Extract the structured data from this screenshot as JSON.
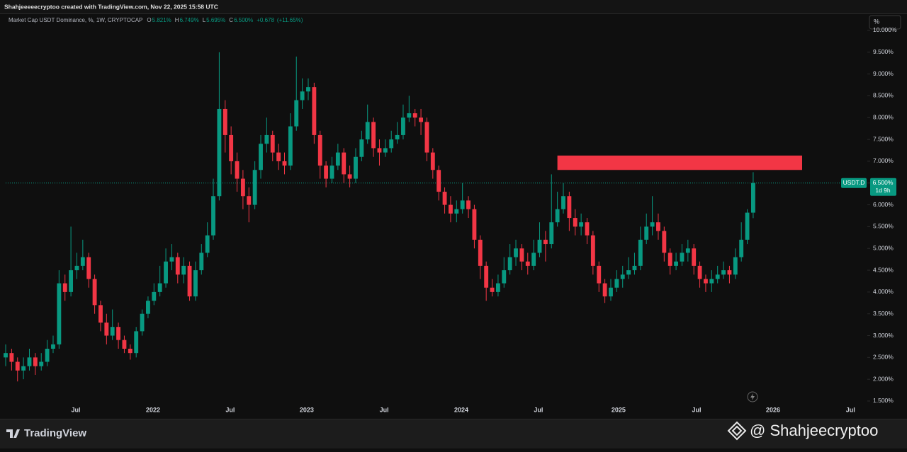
{
  "header": {
    "credit": "Shahjeeeeecryptoo created with TradingView.com, Nov 22, 2025 15:58 UTC"
  },
  "chart_data": {
    "type": "candlestick",
    "title": "Market Cap USDT Dominance, %, 1W, CRYPTOCAP",
    "legend": {
      "ohlc": [
        {
          "key": "O",
          "value": 5.821,
          "label": "5.821%"
        },
        {
          "key": "H",
          "value": 6.749,
          "label": "6.749%"
        },
        {
          "key": "L",
          "value": 5.695,
          "label": "5.695%"
        },
        {
          "key": "C",
          "value": 6.5,
          "label": "6.500%"
        }
      ],
      "change": {
        "value": 0.678,
        "label": "+0.678"
      },
      "change_pct": {
        "value": 11.65,
        "label": "(+11.65%)"
      }
    },
    "unit_button": "%",
    "up_color": "#089981",
    "down_color": "#f23645",
    "x": [
      0,
      2,
      4,
      6,
      8,
      10,
      12,
      14,
      16,
      18,
      20,
      22,
      24,
      26,
      28,
      30,
      32,
      34,
      36,
      38,
      40,
      42,
      44,
      46,
      48,
      50,
      52,
      54,
      56,
      58,
      60,
      62,
      64,
      66,
      68,
      70,
      72,
      74,
      76,
      78,
      80,
      82,
      84,
      86,
      88,
      90,
      92,
      94,
      96,
      98,
      100,
      102,
      104,
      106,
      108,
      110,
      112,
      114,
      116,
      118,
      120,
      122,
      124,
      126,
      128,
      130,
      132,
      134,
      136,
      138,
      140,
      142,
      144,
      146,
      148,
      150,
      152,
      154,
      156,
      158,
      160,
      162,
      164,
      166,
      168,
      170,
      172,
      174,
      176,
      178,
      180,
      182,
      184,
      186,
      188,
      190,
      192,
      194,
      196,
      198,
      200,
      202,
      204,
      206,
      208,
      210,
      212,
      214,
      216,
      218,
      220,
      222,
      224,
      226,
      228,
      230,
      232,
      234,
      236,
      238,
      240,
      242,
      244,
      246,
      248,
      250,
      252
    ],
    "open": [
      2.5,
      2.6,
      2.4,
      2.2,
      2.3,
      2.5,
      2.3,
      2.4,
      2.7,
      2.8,
      4.2,
      4.0,
      4.5,
      4.6,
      4.8,
      4.3,
      3.7,
      3.3,
      3.0,
      3.2,
      2.9,
      2.7,
      2.6,
      3.1,
      3.5,
      3.8,
      4.0,
      4.2,
      4.7,
      4.8,
      4.4,
      4.6,
      3.9,
      4.5,
      4.9,
      5.3,
      6.2,
      8.2,
      7.6,
      7.0,
      6.6,
      6.2,
      6.0,
      6.8,
      7.4,
      7.6,
      7.2,
      7.0,
      6.9,
      7.8,
      8.4,
      8.6,
      8.7,
      7.6,
      6.9,
      6.6,
      6.9,
      7.2,
      6.7,
      6.6,
      7.1,
      7.5,
      7.9,
      7.3,
      7.2,
      7.3,
      7.5,
      7.6,
      8.0,
      8.1,
      8.0,
      7.9,
      7.2,
      6.8,
      6.3,
      6.0,
      5.8,
      5.9,
      6.1,
      5.9,
      5.2,
      4.6,
      4.1,
      4.0,
      4.2,
      4.5,
      4.8,
      5.0,
      4.7,
      4.6,
      4.9,
      5.2,
      5.1,
      5.6,
      5.9,
      6.2,
      5.7,
      5.5,
      5.6,
      5.3,
      4.6,
      4.2,
      3.9,
      4.1,
      4.3,
      4.4,
      4.5,
      4.6,
      5.2,
      5.5,
      5.6,
      5.4,
      4.9,
      4.6,
      4.7,
      4.9,
      5.0,
      4.6,
      4.3,
      4.2,
      4.3,
      4.4,
      4.5,
      4.4,
      4.8,
      5.2,
      5.821
    ],
    "high": [
      2.8,
      2.7,
      2.5,
      2.5,
      2.7,
      2.6,
      2.6,
      2.9,
      3.0,
      4.5,
      4.4,
      5.5,
      4.9,
      5.2,
      4.9,
      4.4,
      3.8,
      3.5,
      3.6,
      3.3,
      3.0,
      2.8,
      3.2,
      3.6,
      3.9,
      4.2,
      4.6,
      5.0,
      5.1,
      4.9,
      4.8,
      4.7,
      4.7,
      5.1,
      5.6,
      6.6,
      9.5,
      8.4,
      7.8,
      7.2,
      6.8,
      6.4,
      7.0,
      7.6,
      8.0,
      7.7,
      7.4,
      7.2,
      8.1,
      9.4,
      8.9,
      8.9,
      8.8,
      7.7,
      7.0,
      7.1,
      7.4,
      7.3,
      6.9,
      7.3,
      7.7,
      8.3,
      8.0,
      7.5,
      7.5,
      7.7,
      7.9,
      8.3,
      8.5,
      8.2,
      8.2,
      8.0,
      7.3,
      6.9,
      6.4,
      6.2,
      6.1,
      6.5,
      6.2,
      6.0,
      5.3,
      4.7,
      4.3,
      4.4,
      4.8,
      5.1,
      5.2,
      5.1,
      4.9,
      5.2,
      5.6,
      5.4,
      6.7,
      6.3,
      6.5,
      6.3,
      5.9,
      5.8,
      5.7,
      5.4,
      4.7,
      4.3,
      4.3,
      4.5,
      4.6,
      4.8,
      4.9,
      5.5,
      5.8,
      6.2,
      5.8,
      5.5,
      5.0,
      4.9,
      5.1,
      5.2,
      5.1,
      4.7,
      4.4,
      4.5,
      4.6,
      4.7,
      4.6,
      5.0,
      5.6,
      5.9,
      6.749
    ],
    "low": [
      2.3,
      2.2,
      1.95,
      2.0,
      2.2,
      2.1,
      2.2,
      2.3,
      2.6,
      2.7,
      3.8,
      3.9,
      4.3,
      4.5,
      4.1,
      3.5,
      3.1,
      2.8,
      2.9,
      2.7,
      2.6,
      2.45,
      2.5,
      3.0,
      3.4,
      3.7,
      3.9,
      4.1,
      4.5,
      4.2,
      4.2,
      3.8,
      3.8,
      4.4,
      4.8,
      5.2,
      6.1,
      7.2,
      6.7,
      6.3,
      5.9,
      5.6,
      5.9,
      6.6,
      7.2,
      7.0,
      6.8,
      6.7,
      6.8,
      7.7,
      8.2,
      8.4,
      7.4,
      6.6,
      6.4,
      6.5,
      6.8,
      6.5,
      6.4,
      6.5,
      7.0,
      7.4,
      7.1,
      6.9,
      7.1,
      7.2,
      7.4,
      7.5,
      7.9,
      7.8,
      7.6,
      7.0,
      6.6,
      6.1,
      5.8,
      5.6,
      5.6,
      5.8,
      5.7,
      5.0,
      4.3,
      3.8,
      3.9,
      3.9,
      4.1,
      4.4,
      4.6,
      4.5,
      4.4,
      4.5,
      4.8,
      4.7,
      5.0,
      5.5,
      5.8,
      5.4,
      5.3,
      5.3,
      5.1,
      4.4,
      4.0,
      3.75,
      3.8,
      4.0,
      4.1,
      4.3,
      4.4,
      4.5,
      5.1,
      5.3,
      5.2,
      4.7,
      4.4,
      4.5,
      4.6,
      4.7,
      4.4,
      4.1,
      4.0,
      4.0,
      4.2,
      4.3,
      4.2,
      4.3,
      4.7,
      5.1,
      5.695
    ],
    "close": [
      2.6,
      2.4,
      2.2,
      2.3,
      2.5,
      2.3,
      2.4,
      2.7,
      2.8,
      4.2,
      4.0,
      4.5,
      4.6,
      4.8,
      4.3,
      3.7,
      3.3,
      3.0,
      3.2,
      2.9,
      2.7,
      2.6,
      3.1,
      3.5,
      3.8,
      4.0,
      4.2,
      4.7,
      4.8,
      4.4,
      4.6,
      3.9,
      4.5,
      4.9,
      5.3,
      6.2,
      8.2,
      7.6,
      7.0,
      6.6,
      6.2,
      6.0,
      6.8,
      7.4,
      7.6,
      7.2,
      7.0,
      6.9,
      7.8,
      8.4,
      8.6,
      8.7,
      7.6,
      6.9,
      6.6,
      6.9,
      7.2,
      6.7,
      6.6,
      7.1,
      7.5,
      7.9,
      7.3,
      7.2,
      7.3,
      7.5,
      7.6,
      8.0,
      8.1,
      8.0,
      7.9,
      7.2,
      6.8,
      6.3,
      6.0,
      5.8,
      5.9,
      6.1,
      5.9,
      5.2,
      4.6,
      4.1,
      4.0,
      4.2,
      4.5,
      4.8,
      5.0,
      4.7,
      4.6,
      4.9,
      5.2,
      5.1,
      5.6,
      5.9,
      6.2,
      5.7,
      5.5,
      5.6,
      5.3,
      4.6,
      4.2,
      3.9,
      4.1,
      4.3,
      4.4,
      4.5,
      4.6,
      5.2,
      5.5,
      5.6,
      5.4,
      4.9,
      4.6,
      4.7,
      4.9,
      5.0,
      4.6,
      4.3,
      4.2,
      4.3,
      4.4,
      4.5,
      4.4,
      4.8,
      5.2,
      5.821,
      6.5
    ],
    "xlim": [
      0,
      290
    ],
    "xticks": [
      {
        "value": 23.65,
        "label": "Jul"
      },
      {
        "value": 49.7,
        "label": "2022"
      },
      {
        "value": 75.7,
        "label": "Jul"
      },
      {
        "value": 101.5,
        "label": "2023"
      },
      {
        "value": 127.6,
        "label": "Jul"
      },
      {
        "value": 153.6,
        "label": "2024"
      },
      {
        "value": 179.6,
        "label": "Jul"
      },
      {
        "value": 206.6,
        "label": "2025"
      },
      {
        "value": 232.9,
        "label": "Jul"
      },
      {
        "value": 258.7,
        "label": "2026"
      },
      {
        "value": 284.8,
        "label": "Jul"
      }
    ],
    "ylim": [
      1.094,
      10.373
    ],
    "yticks": [
      {
        "value": 1.5,
        "label": "1.500%"
      },
      {
        "value": 2,
        "label": "2.000%"
      },
      {
        "value": 2.5,
        "label": "2.500%"
      },
      {
        "value": 3,
        "label": "3.000%"
      },
      {
        "value": 3.5,
        "label": "3.500%"
      },
      {
        "value": 4,
        "label": "4.000%"
      },
      {
        "value": 4.5,
        "label": "4.500%"
      },
      {
        "value": 5,
        "label": "5.000%"
      },
      {
        "value": 5.5,
        "label": "5.500%"
      },
      {
        "value": 6,
        "label": "6.000%"
      },
      {
        "value": 6.5,
        "label": "6.500%"
      },
      {
        "value": 7,
        "label": "7.000%"
      },
      {
        "value": 7.5,
        "label": "7.500%"
      },
      {
        "value": 8,
        "label": "8.000%"
      },
      {
        "value": 8.5,
        "label": "8.500%"
      },
      {
        "value": 9,
        "label": "9.000%"
      },
      {
        "value": 9.5,
        "label": "9.500%"
      },
      {
        "value": 10,
        "label": "10.000%"
      }
    ],
    "grid": false,
    "zone": {
      "x": [
        186,
        268.5
      ],
      "y": [
        6.8,
        7.13
      ],
      "color": "#f23645"
    },
    "last_price": {
      "value": 6.5,
      "label": "6.500%",
      "symbol": "USDT.D",
      "countdown": "1d 9h",
      "color": "#089981"
    }
  },
  "footer": {
    "brand": "TradingView",
    "watermark": "@ Shahjeecryptoo"
  }
}
